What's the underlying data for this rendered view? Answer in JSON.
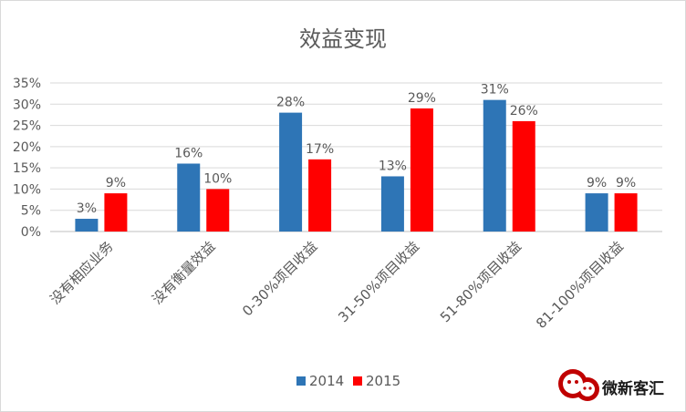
{
  "chart_data": {
    "type": "bar",
    "title": "效益变现",
    "categories": [
      "没有相应业务",
      "没有衡量效益",
      "0-30%项目收益",
      "31-50%项目收益",
      "51-80%项目收益",
      "81-100%项目收益"
    ],
    "series": [
      {
        "name": "2014",
        "color": "#2e75b6",
        "values": [
          3,
          16,
          28,
          13,
          31,
          9
        ]
      },
      {
        "name": "2015",
        "color": "#ff0000",
        "values": [
          9,
          10,
          17,
          29,
          26,
          9
        ]
      }
    ],
    "y_ticks": [
      "0%",
      "5%",
      "10%",
      "15%",
      "20%",
      "25%",
      "30%",
      "35%"
    ],
    "ylim": [
      0,
      35
    ],
    "grid": true,
    "legend_position": "bottom",
    "value_suffix": "%"
  },
  "watermark": {
    "text": "微新客汇",
    "icon": "wechat-logo"
  }
}
